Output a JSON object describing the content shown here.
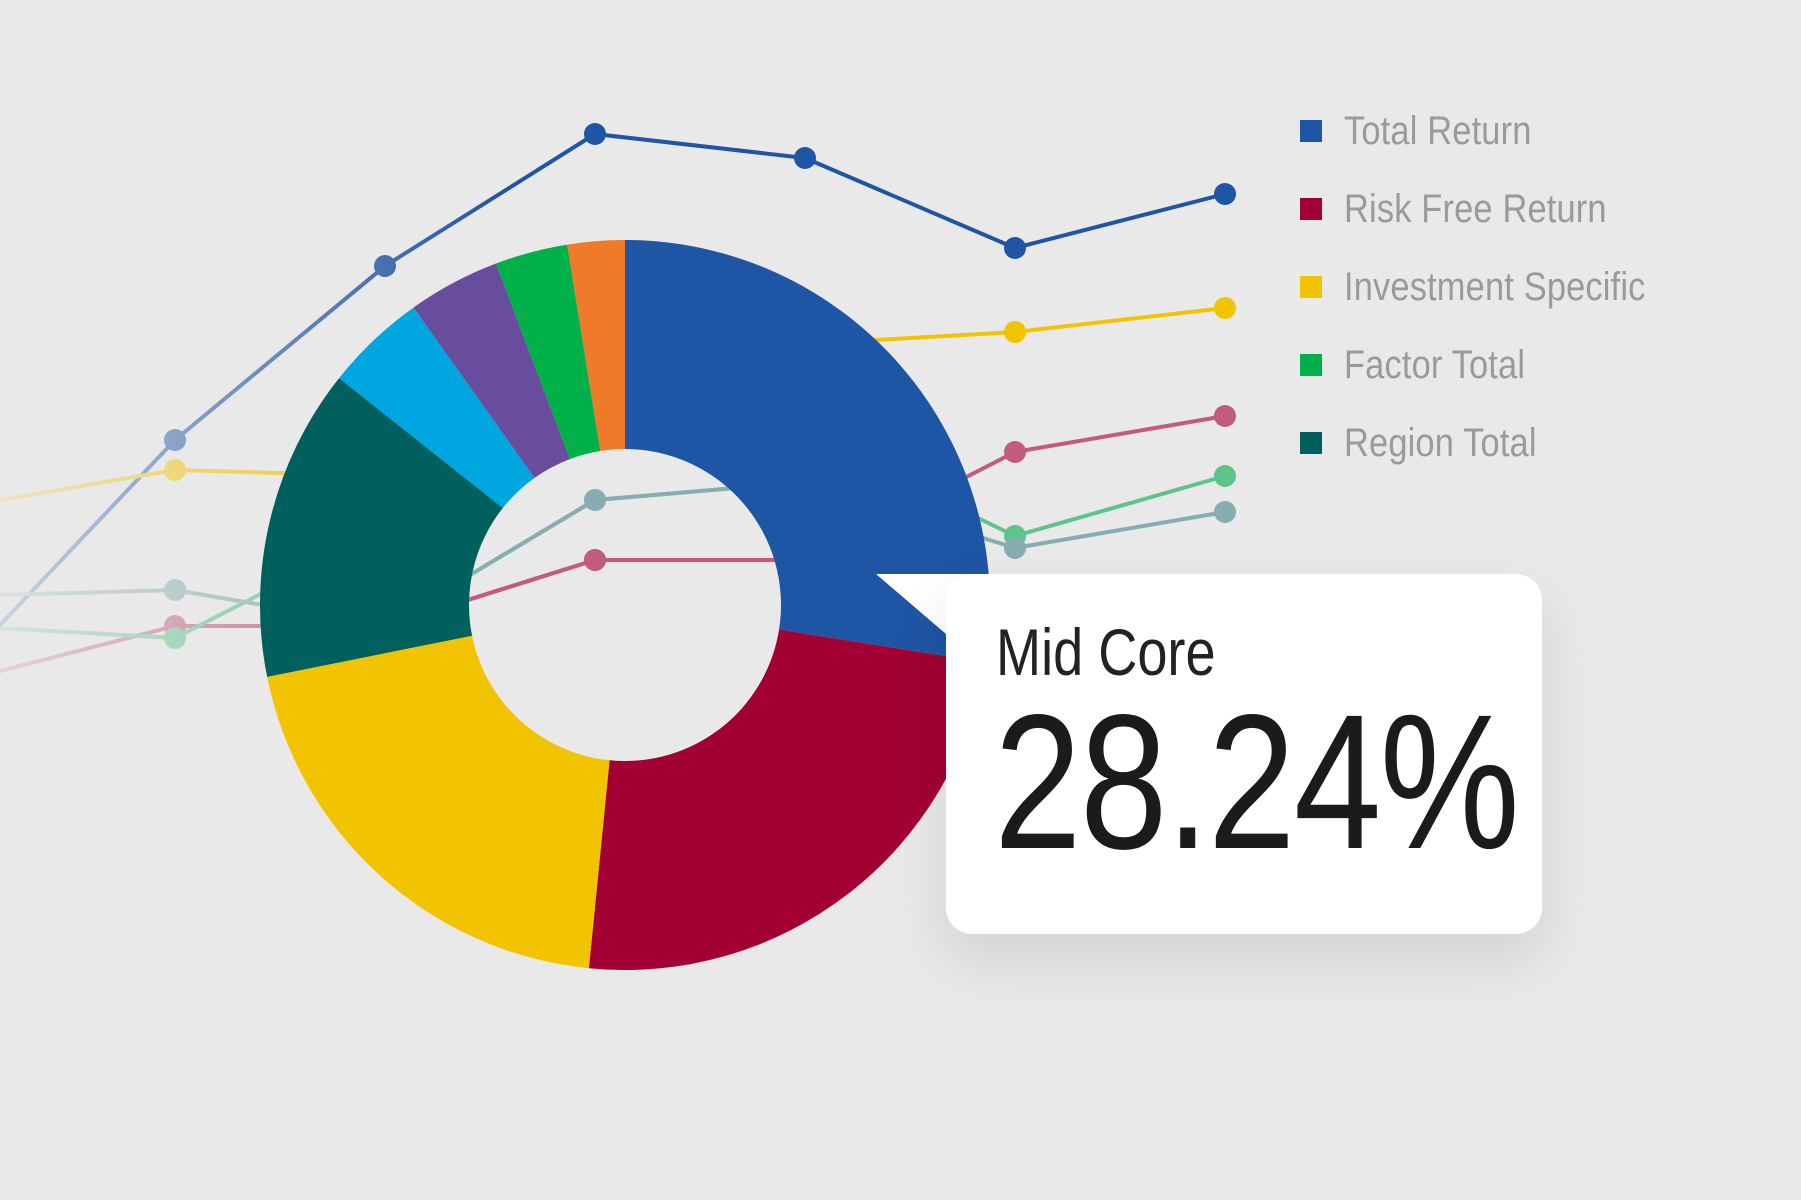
{
  "chart_data": [
    {
      "type": "line",
      "x": [
        0,
        1,
        2,
        3,
        4,
        5,
        6
      ],
      "series": [
        {
          "name": "Total Return",
          "color": "#1f55a5",
          "values": [
            8,
            45,
            74,
            96,
            92,
            77,
            86
          ]
        },
        {
          "name": "Investment Specific",
          "color": "#f2c400",
          "values": [
            34,
            40,
            39,
            45,
            61,
            63,
            67
          ]
        },
        {
          "name": "Risk Free Return",
          "color": "#c25b7f",
          "values": [
            5,
            14,
            14,
            25,
            25,
            43,
            49
          ]
        },
        {
          "name": "Factor Total",
          "color": "#5fc48a",
          "values": [
            14,
            12,
            30,
            60,
            46,
            29,
            39
          ]
        },
        {
          "name": "Region Total",
          "color": "#86aeb0",
          "values": [
            19,
            20,
            14,
            35,
            38,
            27,
            33
          ]
        }
      ]
    },
    {
      "type": "pie",
      "donut": true,
      "slices": [
        {
          "label": "Mid Core",
          "value": 28.24,
          "color": "#1f55a5"
        },
        {
          "value": 24.7,
          "color": "#a30033"
        },
        {
          "value": 20.8,
          "color": "#f2c400"
        },
        {
          "value": 14.2,
          "color": "#00605d"
        },
        {
          "value": 4.6,
          "color": "#00a6e0"
        },
        {
          "value": 4.2,
          "color": "#684c9d"
        },
        {
          "value": 3.3,
          "color": "#00b14a"
        },
        {
          "value": 2.6,
          "color": "#ee7a2a"
        }
      ]
    }
  ],
  "legend": [
    {
      "label": "Total Return",
      "color": "#1f55a5"
    },
    {
      "label": "Risk Free Return",
      "color": "#a30033"
    },
    {
      "label": "Investment Specific",
      "color": "#f2c400"
    },
    {
      "label": "Factor Total",
      "color": "#00b14a"
    },
    {
      "label": "Region Total",
      "color": "#00605d"
    }
  ],
  "tooltip": {
    "label": "Mid Core",
    "value": "28.24%"
  }
}
